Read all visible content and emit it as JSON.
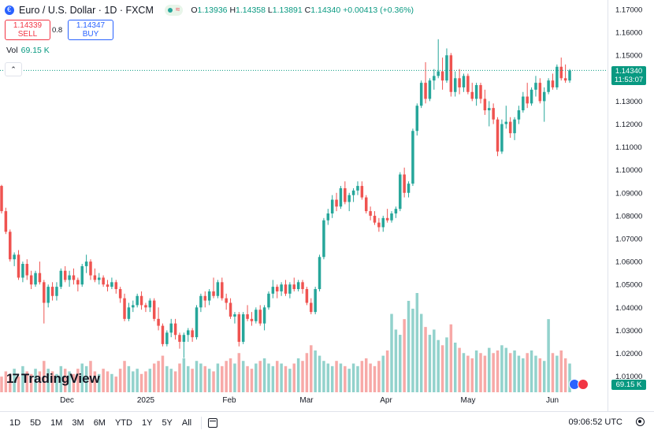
{
  "header": {
    "title": "Euro / U.S. Dollar · 1D · FXCM",
    "ohlc": {
      "o_label": "O",
      "o": "1.13936",
      "h_label": "H",
      "h": "1.14358",
      "l_label": "L",
      "l": "1.13891",
      "c_label": "C",
      "c": "1.14340",
      "change": "+0.00413 (+0.36%)"
    }
  },
  "trade": {
    "sell_price": "1.14339",
    "sell_label": "SELL",
    "spread": "0.8",
    "buy_price": "1.14347",
    "buy_label": "BUY"
  },
  "volume": {
    "label": "Vol",
    "value": "69.15 K"
  },
  "price_tag": {
    "price": "1.14340",
    "countdown": "11:53:07"
  },
  "vol_tag": "69.15 K",
  "branding": {
    "logo_mark": "17",
    "logo_text": "TradingView"
  },
  "toolbar": {
    "ranges": [
      "1D",
      "5D",
      "1M",
      "3M",
      "6M",
      "YTD",
      "1Y",
      "5Y",
      "All"
    ],
    "clock": "09:06:52 UTC"
  },
  "colors": {
    "up": "#26a69a",
    "down": "#ef5350",
    "last_price_line": "#089981"
  },
  "icons": [
    "euro-symbol-icon",
    "market-status-dot-icon",
    "wave-icon",
    "collapse-chevron-icon",
    "calendar-icon",
    "settings-icon",
    "eu-flag-icon",
    "us-flag-icon"
  ],
  "chart_data": {
    "type": "candlestick",
    "title": "Euro / U.S. Dollar · 1D · FXCM",
    "y_ticks": [
      "1.17000",
      "1.16000",
      "1.15000",
      "1.14000",
      "1.13000",
      "1.12000",
      "1.11000",
      "1.10000",
      "1.09000",
      "1.08000",
      "1.07000",
      "1.06000",
      "1.05000",
      "1.04000",
      "1.03000",
      "1.02000",
      "1.01000"
    ],
    "x_ticks": [
      "Dec",
      "2025",
      "Feb",
      "Mar",
      "Apr",
      "May",
      "Jun"
    ],
    "ylim": [
      1.005,
      1.175
    ],
    "last_price": 1.1434,
    "ohlc": [
      [
        1.093,
        1.0935,
        1.081,
        1.082
      ],
      [
        1.082,
        1.0835,
        1.072,
        1.073
      ],
      [
        1.073,
        1.074,
        1.06,
        1.061
      ],
      [
        1.061,
        1.064,
        1.058,
        1.063
      ],
      [
        1.063,
        1.065,
        1.052,
        1.053
      ],
      [
        1.053,
        1.06,
        1.051,
        1.059
      ],
      [
        1.059,
        1.061,
        1.052,
        1.054
      ],
      [
        1.054,
        1.056,
        1.048,
        1.05
      ],
      [
        1.05,
        1.056,
        1.049,
        1.055
      ],
      [
        1.055,
        1.06,
        1.05,
        1.051
      ],
      [
        1.051,
        1.052,
        1.033,
        1.042
      ],
      [
        1.042,
        1.05,
        1.04,
        1.049
      ],
      [
        1.049,
        1.051,
        1.043,
        1.045
      ],
      [
        1.045,
        1.051,
        1.043,
        1.049
      ],
      [
        1.049,
        1.057,
        1.048,
        1.056
      ],
      [
        1.056,
        1.058,
        1.051,
        1.052
      ],
      [
        1.052,
        1.056,
        1.049,
        1.054
      ],
      [
        1.054,
        1.057,
        1.05,
        1.052
      ],
      [
        1.052,
        1.053,
        1.047,
        1.05
      ],
      [
        1.05,
        1.059,
        1.049,
        1.058
      ],
      [
        1.058,
        1.063,
        1.055,
        1.06
      ],
      [
        1.06,
        1.061,
        1.052,
        1.054
      ],
      [
        1.054,
        1.057,
        1.051,
        1.052
      ],
      [
        1.052,
        1.055,
        1.05,
        1.053
      ],
      [
        1.053,
        1.054,
        1.049,
        1.05
      ],
      [
        1.05,
        1.052,
        1.047,
        1.049
      ],
      [
        1.049,
        1.053,
        1.048,
        1.051
      ],
      [
        1.051,
        1.052,
        1.046,
        1.048
      ],
      [
        1.048,
        1.049,
        1.042,
        1.044
      ],
      [
        1.044,
        1.046,
        1.034,
        1.035
      ],
      [
        1.035,
        1.042,
        1.034,
        1.04
      ],
      [
        1.04,
        1.043,
        1.038,
        1.041
      ],
      [
        1.041,
        1.046,
        1.04,
        1.045
      ],
      [
        1.045,
        1.047,
        1.039,
        1.041
      ],
      [
        1.041,
        1.042,
        1.038,
        1.04
      ],
      [
        1.04,
        1.044,
        1.038,
        1.043
      ],
      [
        1.043,
        1.044,
        1.034,
        1.035
      ],
      [
        1.035,
        1.04,
        1.03,
        1.032
      ],
      [
        1.032,
        1.033,
        1.023,
        1.024
      ],
      [
        1.024,
        1.03,
        1.023,
        1.029
      ],
      [
        1.029,
        1.035,
        1.027,
        1.033
      ],
      [
        1.033,
        1.035,
        1.026,
        1.028
      ],
      [
        1.028,
        1.029,
        1.022,
        1.025
      ],
      [
        1.025,
        1.029,
        1.018,
        1.028
      ],
      [
        1.028,
        1.031,
        1.025,
        1.03
      ],
      [
        1.03,
        1.031,
        1.025,
        1.027
      ],
      [
        1.027,
        1.041,
        1.026,
        1.04
      ],
      [
        1.04,
        1.046,
        1.038,
        1.045
      ],
      [
        1.045,
        1.047,
        1.04,
        1.043
      ],
      [
        1.043,
        1.048,
        1.041,
        1.047
      ],
      [
        1.047,
        1.053,
        1.044,
        1.045
      ],
      [
        1.045,
        1.052,
        1.044,
        1.051
      ],
      [
        1.051,
        1.053,
        1.043,
        1.044
      ],
      [
        1.044,
        1.046,
        1.039,
        1.042
      ],
      [
        1.042,
        1.044,
        1.035,
        1.036
      ],
      [
        1.036,
        1.038,
        1.033,
        1.037
      ],
      [
        1.037,
        1.038,
        1.023,
        1.025
      ],
      [
        1.025,
        1.038,
        1.024,
        1.037
      ],
      [
        1.037,
        1.041,
        1.034,
        1.035
      ],
      [
        1.035,
        1.038,
        1.032,
        1.034
      ],
      [
        1.034,
        1.04,
        1.033,
        1.039
      ],
      [
        1.039,
        1.041,
        1.032,
        1.033
      ],
      [
        1.033,
        1.041,
        1.03,
        1.04
      ],
      [
        1.04,
        1.047,
        1.039,
        1.046
      ],
      [
        1.046,
        1.052,
        1.044,
        1.049
      ],
      [
        1.049,
        1.05,
        1.044,
        1.047
      ],
      [
        1.047,
        1.051,
        1.045,
        1.05
      ],
      [
        1.05,
        1.052,
        1.045,
        1.046
      ],
      [
        1.046,
        1.051,
        1.044,
        1.05
      ],
      [
        1.05,
        1.053,
        1.047,
        1.048
      ],
      [
        1.048,
        1.052,
        1.047,
        1.051
      ],
      [
        1.051,
        1.052,
        1.046,
        1.048
      ],
      [
        1.048,
        1.049,
        1.041,
        1.042
      ],
      [
        1.042,
        1.044,
        1.037,
        1.038
      ],
      [
        1.038,
        1.049,
        1.037,
        1.048
      ],
      [
        1.048,
        1.063,
        1.047,
        1.062
      ],
      [
        1.062,
        1.079,
        1.061,
        1.078
      ],
      [
        1.078,
        1.083,
        1.076,
        1.081
      ],
      [
        1.081,
        1.089,
        1.079,
        1.087
      ],
      [
        1.087,
        1.09,
        1.082,
        1.084
      ],
      [
        1.084,
        1.093,
        1.083,
        1.092
      ],
      [
        1.092,
        1.095,
        1.085,
        1.086
      ],
      [
        1.086,
        1.09,
        1.082,
        1.089
      ],
      [
        1.089,
        1.092,
        1.086,
        1.091
      ],
      [
        1.091,
        1.095,
        1.089,
        1.093
      ],
      [
        1.093,
        1.095,
        1.087,
        1.088
      ],
      [
        1.088,
        1.089,
        1.081,
        1.082
      ],
      [
        1.082,
        1.084,
        1.078,
        1.08
      ],
      [
        1.08,
        1.082,
        1.076,
        1.077
      ],
      [
        1.077,
        1.079,
        1.073,
        1.075
      ],
      [
        1.075,
        1.08,
        1.073,
        1.079
      ],
      [
        1.079,
        1.083,
        1.077,
        1.078
      ],
      [
        1.078,
        1.082,
        1.077,
        1.081
      ],
      [
        1.081,
        1.084,
        1.079,
        1.083
      ],
      [
        1.083,
        1.099,
        1.082,
        1.098
      ],
      [
        1.098,
        1.101,
        1.088,
        1.09
      ],
      [
        1.09,
        1.095,
        1.088,
        1.094
      ],
      [
        1.094,
        1.118,
        1.093,
        1.117
      ],
      [
        1.117,
        1.129,
        1.115,
        1.128
      ],
      [
        1.128,
        1.139,
        1.127,
        1.138
      ],
      [
        1.138,
        1.147,
        1.129,
        1.131
      ],
      [
        1.131,
        1.14,
        1.13,
        1.139
      ],
      [
        1.139,
        1.144,
        1.135,
        1.141
      ],
      [
        1.141,
        1.157,
        1.14,
        1.143
      ],
      [
        1.143,
        1.149,
        1.135,
        1.139
      ],
      [
        1.139,
        1.153,
        1.138,
        1.15
      ],
      [
        1.15,
        1.151,
        1.132,
        1.134
      ],
      [
        1.134,
        1.143,
        1.132,
        1.14
      ],
      [
        1.14,
        1.144,
        1.133,
        1.136
      ],
      [
        1.136,
        1.142,
        1.134,
        1.141
      ],
      [
        1.141,
        1.142,
        1.133,
        1.134
      ],
      [
        1.134,
        1.138,
        1.13,
        1.131
      ],
      [
        1.131,
        1.138,
        1.128,
        1.137
      ],
      [
        1.137,
        1.138,
        1.129,
        1.131
      ],
      [
        1.131,
        1.135,
        1.124,
        1.126
      ],
      [
        1.126,
        1.13,
        1.119,
        1.127
      ],
      [
        1.127,
        1.129,
        1.12,
        1.122
      ],
      [
        1.122,
        1.123,
        1.106,
        1.108
      ],
      [
        1.108,
        1.122,
        1.107,
        1.12
      ],
      [
        1.12,
        1.128,
        1.118,
        1.121
      ],
      [
        1.121,
        1.123,
        1.114,
        1.116
      ],
      [
        1.116,
        1.123,
        1.113,
        1.122
      ],
      [
        1.122,
        1.128,
        1.12,
        1.126
      ],
      [
        1.126,
        1.134,
        1.125,
        1.132
      ],
      [
        1.132,
        1.138,
        1.127,
        1.129
      ],
      [
        1.129,
        1.136,
        1.128,
        1.135
      ],
      [
        1.135,
        1.141,
        1.132,
        1.138
      ],
      [
        1.138,
        1.14,
        1.129,
        1.13
      ],
      [
        1.13,
        1.136,
        1.121,
        1.134
      ],
      [
        1.134,
        1.14,
        1.133,
        1.139
      ],
      [
        1.139,
        1.142,
        1.135,
        1.136
      ],
      [
        1.136,
        1.146,
        1.135,
        1.145
      ],
      [
        1.145,
        1.149,
        1.139,
        1.14
      ],
      [
        1.14,
        1.146,
        1.138,
        1.139
      ],
      [
        1.139,
        1.144,
        1.138,
        1.1434
      ]
    ],
    "volume": [
      6,
      8,
      7,
      9,
      6,
      10,
      8,
      7,
      9,
      8,
      12,
      9,
      8,
      7,
      10,
      9,
      8,
      7,
      9,
      11,
      10,
      12,
      8,
      7,
      9,
      8,
      7,
      6,
      9,
      12,
      10,
      8,
      9,
      7,
      8,
      9,
      11,
      12,
      14,
      10,
      9,
      8,
      11,
      13,
      10,
      9,
      12,
      11,
      10,
      9,
      8,
      11,
      10,
      12,
      13,
      11,
      15,
      12,
      10,
      9,
      11,
      12,
      13,
      11,
      10,
      12,
      11,
      10,
      9,
      11,
      13,
      12,
      15,
      18,
      16,
      14,
      12,
      11,
      10,
      12,
      11,
      10,
      9,
      11,
      10,
      12,
      13,
      11,
      10,
      12,
      14,
      16,
      30,
      24,
      22,
      28,
      35,
      32,
      38,
      30,
      25,
      22,
      24,
      20,
      18,
      21,
      26,
      19,
      17,
      15,
      14,
      13,
      16,
      15,
      14,
      17,
      15,
      16,
      18,
      17,
      15,
      16,
      14,
      13,
      15,
      16,
      14,
      13,
      12,
      28,
      15,
      14,
      16,
      13,
      11
    ]
  }
}
